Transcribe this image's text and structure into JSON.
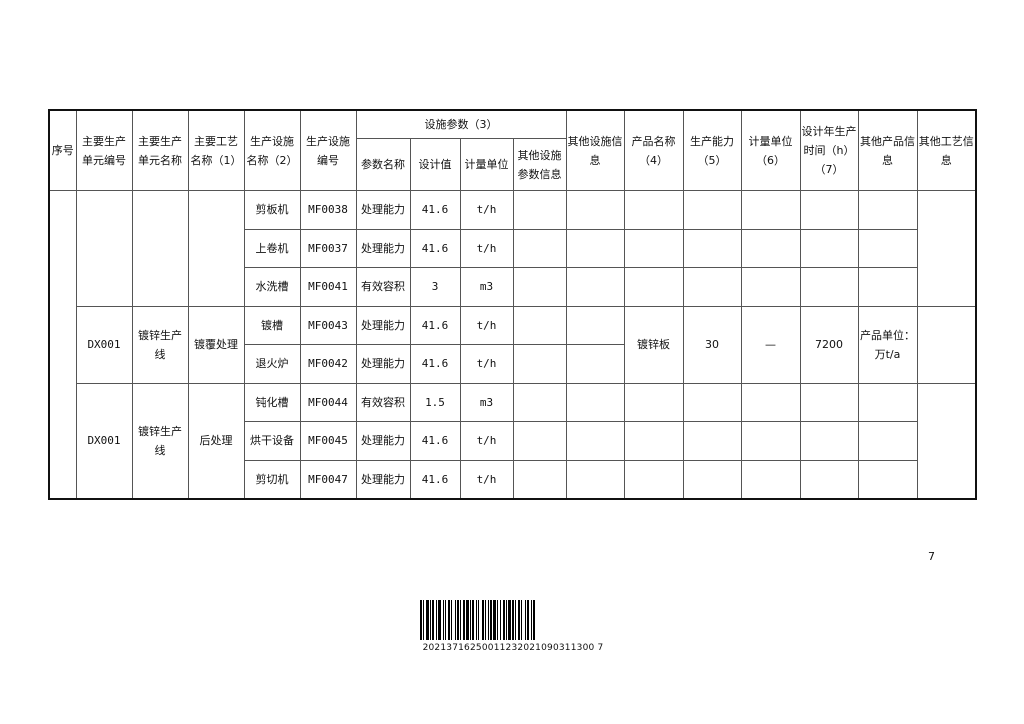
{
  "header": {
    "seq": "序号",
    "unit_code": "主要生产单元编号",
    "unit_name": "主要生产单元名称",
    "process_name": "主要工艺名称（1）",
    "facility_name": "生产设施名称（2）",
    "facility_code": "生产设施编号",
    "params_group": "设施参数（3）",
    "param_name": "参数名称",
    "design_value": "设计值",
    "measure_unit": "计量单位",
    "other_param_info": "其他设施参数信息",
    "other_facility_info": "其他设施信息",
    "product_name": "产品名称（4）",
    "capacity": "生产能力（5）",
    "capacity_unit": "计量单位（6）",
    "annual_hours": "设计年生产时间（h）（7）",
    "other_product_info": "其他产品信息",
    "other_process_info": "其他工艺信息"
  },
  "seq_value": "",
  "groups": [
    {
      "unit_code": "",
      "unit_name": "",
      "process_name": "",
      "facilities": [
        {
          "name": "剪板机",
          "code": "MF0038",
          "param": "处理能力",
          "value": "41.6",
          "unit": "t/h"
        },
        {
          "name": "上卷机",
          "code": "MF0037",
          "param": "处理能力",
          "value": "41.6",
          "unit": "t/h"
        },
        {
          "name": "水洗槽",
          "code": "MF0041",
          "param": "有效容积",
          "value": "3",
          "unit": "m3"
        }
      ]
    },
    {
      "unit_code": "DX001",
      "unit_name": "镀锌生产线",
      "process_name": "镀覆处理",
      "facilities": [
        {
          "name": "镀槽",
          "code": "MF0043",
          "param": "处理能力",
          "value": "41.6",
          "unit": "t/h"
        },
        {
          "name": "退火炉",
          "code": "MF0042",
          "param": "处理能力",
          "value": "41.6",
          "unit": "t/h"
        }
      ],
      "product": {
        "name": "镀锌板",
        "capacity": "30",
        "unit": "—",
        "hours": "7200",
        "other_info": "产品单位：万t/a"
      }
    },
    {
      "unit_code": "DX001",
      "unit_name": "镀锌生产线",
      "process_name": "后处理",
      "facilities": [
        {
          "name": "钝化槽",
          "code": "MF0044",
          "param": "有效容积",
          "value": "1.5",
          "unit": "m3"
        },
        {
          "name": "烘干设备",
          "code": "MF0045",
          "param": "处理能力",
          "value": "41.6",
          "unit": "t/h"
        },
        {
          "name": "剪切机",
          "code": "MF0047",
          "param": "处理能力",
          "value": "41.6",
          "unit": "t/h"
        }
      ]
    }
  ],
  "page_number": "7",
  "barcode_number": "20213716250011232021090311300 7"
}
